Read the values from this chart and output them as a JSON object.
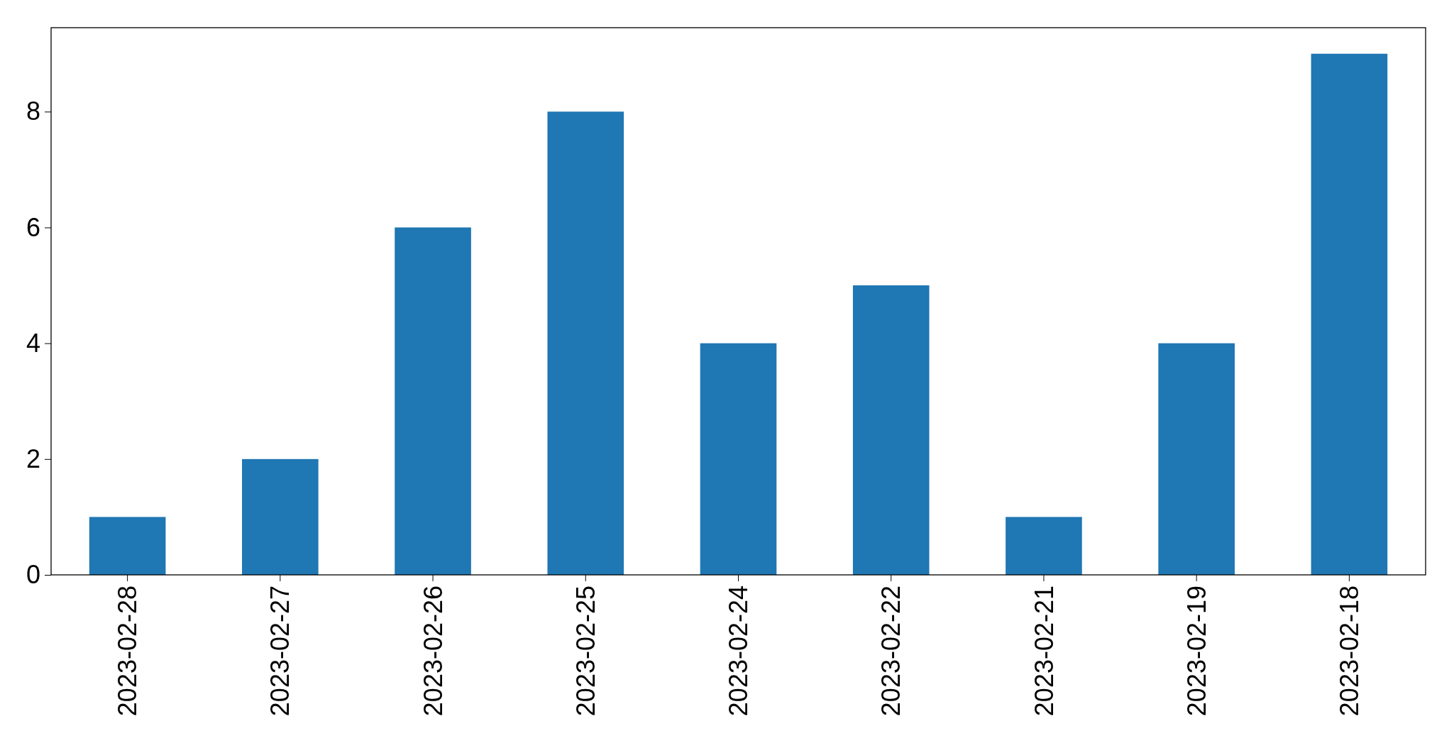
{
  "chart_data": {
    "type": "bar",
    "categories": [
      "2023-02-28",
      "2023-02-27",
      "2023-02-26",
      "2023-02-25",
      "2023-02-24",
      "2023-02-22",
      "2023-02-21",
      "2023-02-19",
      "2023-02-18"
    ],
    "values": [
      1,
      2,
      6,
      8,
      4,
      5,
      1,
      4,
      9
    ],
    "color": "#1f77b4",
    "ylim": [
      0,
      9.45
    ],
    "yticks": [
      0,
      2,
      4,
      6,
      8
    ]
  }
}
